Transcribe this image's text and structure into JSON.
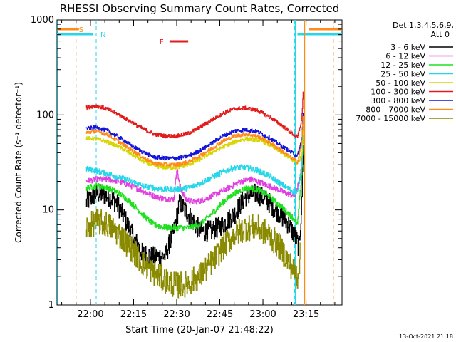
{
  "chart_data": {
    "type": "line",
    "title": "RHESSI Observing Summary Count Rates, Corrected",
    "xlabel": "Start Time (20-Jan-07 21:48:22)",
    "ylabel": "Corrected Count Rate (s⁻¹ detector⁻¹)",
    "y_scale": "log",
    "xlim": [
      "21:48:22",
      "23:27:30"
    ],
    "ylim": [
      1,
      1000
    ],
    "x_ticks": [
      "22:00",
      "22:15",
      "22:30",
      "22:45",
      "23:00",
      "23:15"
    ],
    "y_ticks": [
      "1",
      "10",
      "100",
      "1000"
    ],
    "grid": false,
    "legend_position": "right",
    "legend_header": [
      "Det 1,3,4,5,6,9,",
      "Att 0"
    ],
    "footer_date": "13-Oct-2021 21:18",
    "flags": {
      "S": {
        "label": "S",
        "color": "#ff8c1a",
        "bars": [
          [
            "21:48:22",
            "21:56:00"
          ],
          [
            "23:16:00",
            "23:27:30"
          ]
        ],
        "lines": [
          "21:55:00",
          "23:24:30"
        ]
      },
      "N": {
        "label": "N",
        "color": "#27d7e8",
        "bars": [
          [
            "21:48:22",
            "22:01:00"
          ],
          [
            "23:12:00",
            "23:27:30"
          ]
        ],
        "lines": [
          "22:02:00",
          "23:11:00"
        ]
      },
      "F": {
        "label": "F",
        "color": "#e31b1b",
        "bars": [
          [
            "22:27:30",
            "22:34:00"
          ]
        ]
      }
    },
    "series": [
      {
        "name": "3 - 6 keV",
        "color": "#000000",
        "noise": 0.22,
        "x": [
          "21:58:30",
          "22:02",
          "22:06",
          "22:09",
          "22:12",
          "22:15",
          "22:18",
          "22:22",
          "22:26",
          "22:29",
          "22:31",
          "22:34",
          "22:38",
          "22:42",
          "22:46",
          "22:50",
          "22:54",
          "22:58",
          "23:02",
          "23:06",
          "23:09",
          "23:11:30",
          "23:12:30",
          "23:13:30",
          "23:14"
        ],
        "y": [
          12,
          15,
          14,
          12,
          8,
          5,
          3.5,
          3.2,
          3.3,
          6,
          12,
          9,
          6,
          6,
          7,
          9,
          14,
          15,
          12,
          9,
          7,
          5,
          4,
          12,
          60
        ]
      },
      {
        "name": "6 - 12 keV",
        "color": "#e040e0",
        "noise": 0.06,
        "x": [
          "21:58:30",
          "22:02",
          "22:06",
          "22:10",
          "22:14",
          "22:18",
          "22:22",
          "22:26",
          "22:29",
          "22:30",
          "22:31",
          "22:33",
          "22:36",
          "22:40",
          "22:44",
          "22:48",
          "22:52",
          "22:56",
          "23:00",
          "23:04",
          "23:08",
          "23:11",
          "23:13",
          "23:14"
        ],
        "y": [
          20,
          21,
          21,
          20,
          18,
          16,
          14,
          13,
          13,
          28,
          18,
          13,
          12,
          13,
          15,
          17,
          20,
          21,
          19,
          17,
          15,
          14,
          22,
          55
        ]
      },
      {
        "name": "12 - 25 keV",
        "color": "#1ee01e",
        "noise": 0.06,
        "x": [
          "21:58:30",
          "22:02",
          "22:06",
          "22:10",
          "22:14",
          "22:18",
          "22:22",
          "22:26",
          "22:30",
          "22:34",
          "22:38",
          "22:42",
          "22:46",
          "22:50",
          "22:54",
          "22:58",
          "23:02",
          "23:06",
          "23:10",
          "23:12",
          "23:13:30",
          "23:14"
        ],
        "y": [
          17,
          18,
          17,
          15,
          12,
          9,
          7,
          6.5,
          6.5,
          6.5,
          7,
          9,
          12,
          15,
          17,
          16.5,
          14,
          11,
          8.5,
          7,
          25,
          70
        ]
      },
      {
        "name": "25 - 50 keV",
        "color": "#27d7e8",
        "noise": 0.06,
        "x": [
          "21:58:30",
          "22:02",
          "22:06",
          "22:10",
          "22:14",
          "22:18",
          "22:22",
          "22:26",
          "22:30",
          "22:34",
          "22:38",
          "22:42",
          "22:46",
          "22:50",
          "22:54",
          "22:58",
          "23:02",
          "23:06",
          "23:10",
          "23:12",
          "23:13:30",
          "23:14"
        ],
        "y": [
          27,
          26,
          24,
          22,
          20,
          18,
          17,
          16.5,
          16.5,
          17,
          19,
          22,
          25,
          28,
          28,
          26,
          23,
          19,
          16,
          15,
          30,
          80
        ]
      },
      {
        "name": "50 - 100 keV",
        "color": "#d6d600",
        "noise": 0.04,
        "x": [
          "21:58:30",
          "22:02",
          "22:06",
          "22:10",
          "22:14",
          "22:18",
          "22:22",
          "22:26",
          "22:30",
          "22:34",
          "22:38",
          "22:42",
          "22:46",
          "22:50",
          "22:54",
          "22:58",
          "23:02",
          "23:06",
          "23:10",
          "23:12",
          "23:13:30",
          "23:14"
        ],
        "y": [
          57,
          56,
          52,
          46,
          39,
          33,
          29,
          28,
          28,
          30,
          34,
          40,
          46,
          52,
          56,
          55,
          49,
          41,
          34,
          31,
          38,
          80
        ]
      },
      {
        "name": "100 - 300 keV",
        "color": "#e31b1b",
        "noise": 0.04,
        "x": [
          "21:58:30",
          "22:02",
          "22:06",
          "22:10",
          "22:14",
          "22:18",
          "22:22",
          "22:26",
          "22:30",
          "22:34",
          "22:38",
          "22:42",
          "22:46",
          "22:50",
          "22:54",
          "22:58",
          "23:02",
          "23:06",
          "23:10",
          "23:12",
          "23:13:30",
          "23:14"
        ],
        "y": [
          120,
          125,
          115,
          100,
          85,
          72,
          63,
          60,
          60,
          64,
          74,
          88,
          104,
          116,
          118,
          112,
          96,
          80,
          64,
          58,
          90,
          190
        ]
      },
      {
        "name": "300 - 800 keV",
        "color": "#1414d8",
        "noise": 0.04,
        "x": [
          "21:58:30",
          "22:02",
          "22:06",
          "22:10",
          "22:14",
          "22:18",
          "22:22",
          "22:26",
          "22:30",
          "22:34",
          "22:38",
          "22:42",
          "22:46",
          "22:50",
          "22:54",
          "22:58",
          "23:02",
          "23:06",
          "23:10",
          "23:12",
          "23:13:30",
          "23:14"
        ],
        "y": [
          72,
          74,
          68,
          58,
          48,
          41,
          36,
          35,
          35,
          37,
          42,
          50,
          60,
          68,
          70,
          67,
          58,
          48,
          40,
          37,
          55,
          110
        ]
      },
      {
        "name": "800 - 7000 keV",
        "color": "#ff8c1a",
        "noise": 0.04,
        "x": [
          "21:58:30",
          "22:02",
          "22:06",
          "22:10",
          "22:14",
          "22:18",
          "22:22",
          "22:26",
          "22:30",
          "22:34",
          "22:38",
          "22:42",
          "22:46",
          "22:50",
          "22:54",
          "22:58",
          "23:02",
          "23:06",
          "23:10",
          "23:12",
          "23:13:30",
          "23:14"
        ],
        "y": [
          65,
          68,
          62,
          52,
          43,
          36,
          31,
          30,
          30,
          32,
          37,
          44,
          53,
          60,
          63,
          60,
          52,
          43,
          35,
          32,
          50,
          100
        ]
      },
      {
        "name": "7000 - 15000 keV",
        "color": "#8a8a00",
        "noise": 0.28,
        "x": [
          "21:58:30",
          "22:02",
          "22:06",
          "22:10",
          "22:14",
          "22:18",
          "22:22",
          "22:26",
          "22:30",
          "22:34",
          "22:38",
          "22:42",
          "22:46",
          "22:50",
          "22:54",
          "22:58",
          "23:02",
          "23:06",
          "23:10",
          "23:12",
          "23:13"
        ],
        "y": [
          6.5,
          7.5,
          7,
          5.5,
          4,
          2.8,
          2.2,
          1.8,
          1.6,
          1.7,
          2,
          2.8,
          4,
          5.5,
          6.5,
          6.5,
          5.5,
          4,
          2.5,
          2,
          3.5
        ]
      }
    ]
  }
}
